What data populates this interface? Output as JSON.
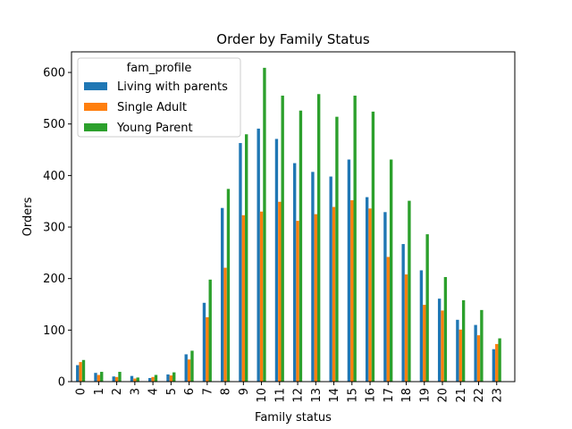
{
  "chart_data": {
    "type": "bar",
    "title": "Order by Family Status",
    "xlabel": "Family status",
    "ylabel": "Orders",
    "ylim": [
      0,
      640
    ],
    "yticks": [
      0,
      100,
      200,
      300,
      400,
      500,
      600
    ],
    "grid": false,
    "legend": {
      "title": "fam_profile",
      "placement": "top-left"
    },
    "categories": [
      "0",
      "1",
      "2",
      "3",
      "4",
      "5",
      "6",
      "7",
      "8",
      "9",
      "10",
      "11",
      "12",
      "13",
      "14",
      "15",
      "16",
      "17",
      "18",
      "19",
      "20",
      "21",
      "22",
      "23"
    ],
    "series": [
      {
        "name": "Living with parents",
        "color": "#1f77b4",
        "values": [
          32,
          17,
          10,
          11,
          7,
          14,
          53,
          153,
          337,
          463,
          491,
          471,
          424,
          407,
          398,
          431,
          358,
          329,
          267,
          216,
          161,
          120,
          110,
          63
        ]
      },
      {
        "name": "Single Adult",
        "color": "#ff7f0e",
        "values": [
          38,
          13,
          9,
          6,
          9,
          12,
          43,
          125,
          221,
          323,
          330,
          349,
          312,
          325,
          339,
          352,
          336,
          242,
          208,
          149,
          138,
          101,
          90,
          73
        ]
      },
      {
        "name": "Young Parent",
        "color": "#2ca02c",
        "values": [
          42,
          19,
          19,
          8,
          13,
          18,
          60,
          198,
          374,
          480,
          609,
          555,
          526,
          558,
          514,
          555,
          524,
          431,
          351,
          286,
          203,
          158,
          139,
          84
        ]
      }
    ]
  }
}
